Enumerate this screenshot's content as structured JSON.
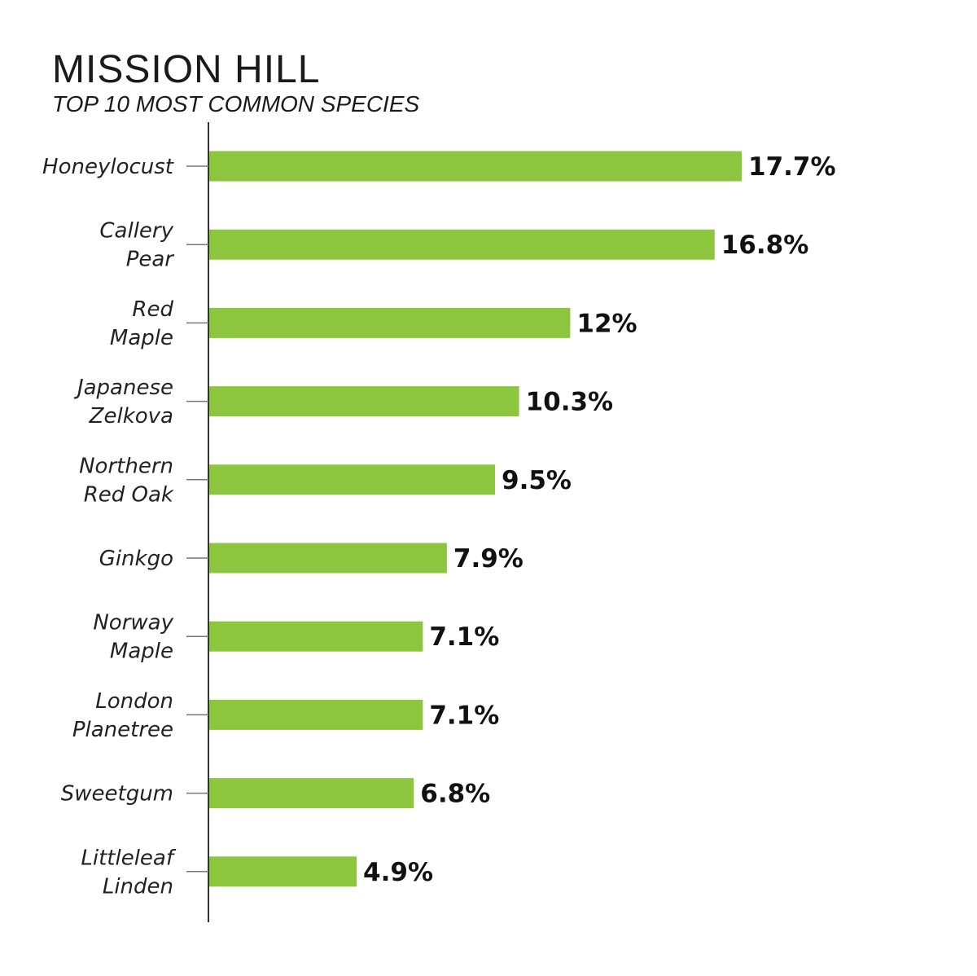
{
  "chart_data": {
    "type": "bar",
    "orientation": "horizontal",
    "title": "MISSION HILL",
    "subtitle": "TOP 10 MOST COMMON SPECIES",
    "categories": [
      [
        "Honeylocust"
      ],
      [
        "Callery",
        "Pear"
      ],
      [
        "Red",
        "Maple"
      ],
      [
        "Japanese",
        "Zelkova"
      ],
      [
        "Northern",
        "Red Oak"
      ],
      [
        "Ginkgo"
      ],
      [
        "Norway",
        "Maple"
      ],
      [
        "London",
        "Planetree"
      ],
      [
        "Sweetgum"
      ],
      [
        "Littleleaf",
        "Linden"
      ]
    ],
    "values": [
      17.7,
      16.8,
      12,
      10.3,
      9.5,
      7.9,
      7.1,
      7.1,
      6.8,
      4.9
    ],
    "value_labels": [
      "17.7%",
      "16.8%",
      "12%",
      "10.3%",
      "9.5%",
      "7.9%",
      "7.1%",
      "7.1%",
      "6.8%",
      "4.9%"
    ],
    "xlim": [
      0,
      17.7
    ],
    "grid": false,
    "legend": "none",
    "colors": {
      "bar": "#8cc63f",
      "axis": "#333333",
      "text": "#1a1a1a"
    }
  }
}
